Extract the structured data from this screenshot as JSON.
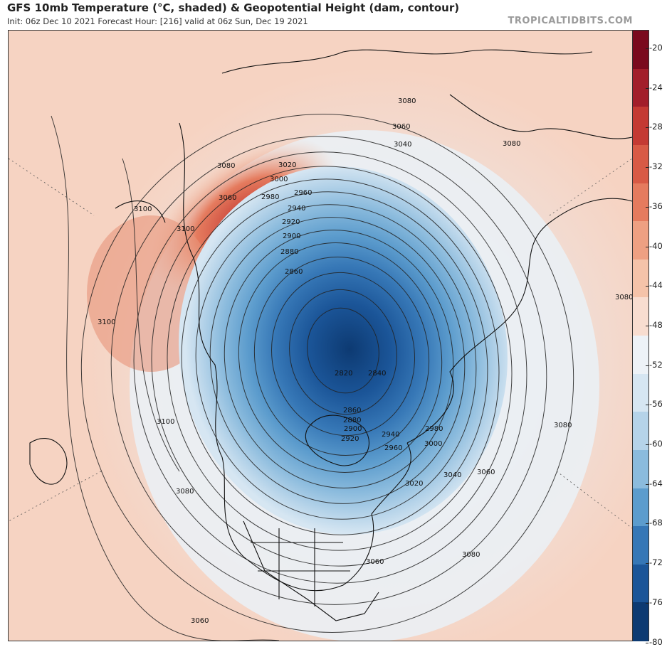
{
  "header": {
    "title": "GFS 10mb Temperature (°C, shaded) & Geopotential Height (dam, contour)",
    "subtitle": "Init: 06z Dec 10 2021   Forecast Hour: [216]   valid at 06z Sun, Dec 19 2021",
    "brand": "TROPICALTIDBITS.COM"
  },
  "colorbar": {
    "ticks": [
      "-20",
      "-24",
      "-28",
      "-32",
      "-36",
      "-40",
      "-44",
      "-48",
      "-52",
      "-56",
      "-60",
      "-64",
      "-68",
      "-72",
      "-76",
      "-80"
    ],
    "colors": [
      "#7a0a1e",
      "#a21e2a",
      "#c43a33",
      "#d85a45",
      "#e57b5e",
      "#eea082",
      "#f5c3a9",
      "#f8ddd0",
      "#edf2f7",
      "#d6e6f2",
      "#b5d3e9",
      "#8bbbdd",
      "#5c9ccd",
      "#3677b6",
      "#1b5598",
      "#0d3a72"
    ]
  },
  "contour_labels": [
    "3080",
    "3060",
    "3040",
    "3080",
    "3020",
    "3000",
    "2980",
    "2960",
    "2940",
    "2920",
    "2900",
    "2880",
    "2860",
    "3080",
    "3100",
    "3100",
    "3060",
    "3100",
    "3100",
    "2820",
    "2840",
    "2860",
    "2880",
    "2900",
    "2920",
    "2940",
    "2960",
    "2980",
    "3000",
    "3020",
    "3040",
    "3060",
    "3060",
    "3080",
    "3080",
    "3080",
    "3060",
    "3080"
  ]
}
